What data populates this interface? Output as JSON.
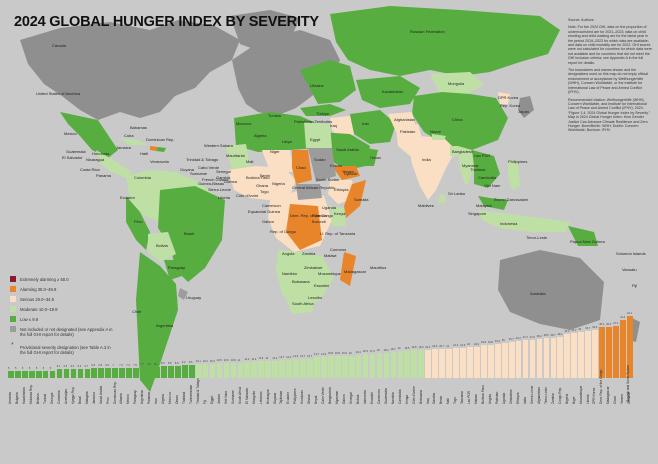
{
  "title": "2024 GLOBAL HUNGER INDEX BY SEVERITY",
  "colors": {
    "background": "#c9c9c9",
    "ocean": "#c9c9c9",
    "extremely_alarming": "#8a1b2e",
    "alarming": "#e8852a",
    "serious": "#fbdfc4",
    "moderate": "#bfe0a4",
    "low": "#57ad3f",
    "not_included": "#9c9c9c",
    "text_dark": "#111111"
  },
  "source_note": [
    "Source: Authors.",
    "Note: For the 2024 GHI, data on the proportion of undernourished are for 2021–2023; data on child stunting and child wasting are for the latest year in the period 2019–2023 for which data are available; and data on child mortality are for 2022. GHI scores were not calculated for countries for which data were not available and for countries that did not meet the GHI inclusion criteria; see Appendix A in the full report for details.",
    "The boundaries and names shown and the designations used on this map do not imply official endorsement or acceptance by Welthungerhilfe (WHH), Concern Worldwide, or the Institute for International Law of Peace and Armed Conflict (IFHV).",
    "Recommended citation: Welthungerhilfe (WHH), Concern Worldwide, and Institute for International Law of Peace and Armed Conflict (IFHV). 2024. “Figure 1.4: 2024 Global Hunger Index by Severity.” Map in 2024 Global Hunger Index: How Gender Justice Can Advance Climate Resilience and Zero Hunger. Bonn/Berlin: WHH; Dublin: Concern Worldwide; Bochum: IFHV."
  ],
  "legend": [
    {
      "key": "extremely_alarming",
      "label": "Extremely alarming ≥ 50.0"
    },
    {
      "key": "alarming",
      "label": "Alarming 35.0–49.9"
    },
    {
      "key": "serious",
      "label": "Serious 20.0–34.9"
    },
    {
      "key": "moderate",
      "label": "Moderate 10.0–19.9"
    },
    {
      "key": "low",
      "label": "Low ≤ 9.9"
    },
    {
      "key": "not_included",
      "label": "Not included or not designated (see Appendix A in the full GHI report for details)"
    },
    {
      "key": "provisional",
      "label": "Provisional severity designation (see Table A.3 in the full GHI report for details)"
    }
  ],
  "map_labels": [
    {
      "text": "Canada",
      "key": "canada"
    },
    {
      "text": "United States of America",
      "key": "usa"
    },
    {
      "text": "Mexico",
      "key": "mexico"
    },
    {
      "text": "Guatemala",
      "key": "guatemala"
    },
    {
      "text": "El Salvador",
      "key": "el_salvador"
    },
    {
      "text": "Nicaragua",
      "key": "nicaragua"
    },
    {
      "text": "Costa Rica",
      "key": "costa_rica"
    },
    {
      "text": "Panama",
      "key": "panama"
    },
    {
      "text": "Honduras",
      "key": "honduras"
    },
    {
      "text": "Cuba",
      "key": "cuba"
    },
    {
      "text": "Jamaica",
      "key": "jamaica"
    },
    {
      "text": "Haiti",
      "key": "haiti"
    },
    {
      "text": "Bahamas",
      "key": "bahamas"
    },
    {
      "text": "Dominican Rep.",
      "key": "dominican"
    },
    {
      "text": "Trinidad & Tobago",
      "key": "trinidad"
    },
    {
      "text": "Venezuela",
      "key": "venezuela"
    },
    {
      "text": "Guyana",
      "key": "guyana"
    },
    {
      "text": "Suriname",
      "key": "suriname"
    },
    {
      "text": "French Guiana",
      "key": "fguiana"
    },
    {
      "text": "Colombia",
      "key": "colombia"
    },
    {
      "text": "Ecuador",
      "key": "ecuador"
    },
    {
      "text": "Peru",
      "key": "peru"
    },
    {
      "text": "Brazil",
      "key": "brazil"
    },
    {
      "text": "Bolivia",
      "key": "bolivia"
    },
    {
      "text": "Paraguay",
      "key": "paraguay"
    },
    {
      "text": "Chile",
      "key": "chile"
    },
    {
      "text": "Argentina",
      "key": "argentina"
    },
    {
      "text": "Uruguay",
      "key": "uruguay"
    },
    {
      "text": "Western Sahara",
      "key": "wsahara"
    },
    {
      "text": "Mauritania",
      "key": "mauritania"
    },
    {
      "text": "Cabo Verde",
      "key": "caboverde"
    },
    {
      "text": "Senegal",
      "key": "senegal"
    },
    {
      "text": "Gambia",
      "key": "gambia"
    },
    {
      "text": "Guinea-Bissau",
      "key": "guineabissau"
    },
    {
      "text": "Guinea",
      "key": "guinea"
    },
    {
      "text": "Sierra Leone",
      "key": "sierraleone"
    },
    {
      "text": "Liberia",
      "key": "liberia"
    },
    {
      "text": "Côte d'Ivoire",
      "key": "cotedivoire"
    },
    {
      "text": "Mali",
      "key": "mali"
    },
    {
      "text": "Burkina Faso",
      "key": "burkina"
    },
    {
      "text": "Ghana",
      "key": "ghana"
    },
    {
      "text": "Togo",
      "key": "togo"
    },
    {
      "text": "Benin",
      "key": "benin"
    },
    {
      "text": "Niger",
      "key": "niger"
    },
    {
      "text": "Nigeria",
      "key": "nigeria"
    },
    {
      "text": "Morocco",
      "key": "morocco"
    },
    {
      "text": "Algeria",
      "key": "algeria"
    },
    {
      "text": "Tunisia",
      "key": "tunisia"
    },
    {
      "text": "Libya",
      "key": "libya"
    },
    {
      "text": "Egypt",
      "key": "egypt"
    },
    {
      "text": "Chad",
      "key": "chad"
    },
    {
      "text": "Sudan",
      "key": "sudan"
    },
    {
      "text": "South Sudan",
      "key": "ssudan"
    },
    {
      "text": "Ethiopia",
      "key": "ethiopia"
    },
    {
      "text": "Eritrea",
      "key": "eritrea"
    },
    {
      "text": "Djibouti",
      "key": "djibouti"
    },
    {
      "text": "Somalia",
      "key": "somalia"
    },
    {
      "text": "Kenya",
      "key": "kenya"
    },
    {
      "text": "Uganda",
      "key": "uganda"
    },
    {
      "text": "Rwanda",
      "key": "rwanda"
    },
    {
      "text": "Burundi",
      "key": "burundi"
    },
    {
      "text": "U. Rep. of Tanzania",
      "key": "tanzania"
    },
    {
      "text": "Cameroon",
      "key": "cameroon"
    },
    {
      "text": "Central African Republic",
      "key": "car"
    },
    {
      "text": "Equatorial Guinea",
      "key": "eqguinea"
    },
    {
      "text": "Gabon",
      "key": "gabon"
    },
    {
      "text": "Rep. of Congo",
      "key": "congo"
    },
    {
      "text": "Dem. Rep. of the Congo",
      "key": "drc"
    },
    {
      "text": "Angola",
      "key": "angola"
    },
    {
      "text": "Zambia",
      "key": "zambia"
    },
    {
      "text": "Malawi",
      "key": "malawi"
    },
    {
      "text": "Mozambique",
      "key": "mozambique"
    },
    {
      "text": "Zimbabwe",
      "key": "zimbabwe"
    },
    {
      "text": "Namibia",
      "key": "namibia"
    },
    {
      "text": "Botswana",
      "key": "botswana"
    },
    {
      "text": "South Africa",
      "key": "southafrica"
    },
    {
      "text": "Eswatini",
      "key": "eswatini"
    },
    {
      "text": "Lesotho",
      "key": "lesotho"
    },
    {
      "text": "Madagascar",
      "key": "madagascar"
    },
    {
      "text": "Comoros",
      "key": "comoros"
    },
    {
      "text": "Mauritius",
      "key": "mauritius"
    },
    {
      "text": "Yemen",
      "key": "yemen"
    },
    {
      "text": "Saudi Arabia",
      "key": "saudi"
    },
    {
      "text": "Oman",
      "key": "oman"
    },
    {
      "text": "Palestinian Territories",
      "key": "palestine"
    },
    {
      "text": "Iraq",
      "key": "iraq"
    },
    {
      "text": "Iran",
      "key": "iran"
    },
    {
      "text": "Afghanistan",
      "key": "afghanistan"
    },
    {
      "text": "Pakistan",
      "key": "pakistan"
    },
    {
      "text": "India",
      "key": "india"
    },
    {
      "text": "Nepal",
      "key": "nepal"
    },
    {
      "text": "Bangladesh",
      "key": "bangladesh"
    },
    {
      "text": "Sri Lanka",
      "key": "srilanka"
    },
    {
      "text": "Maldives",
      "key": "maldives"
    },
    {
      "text": "Myanmar",
      "key": "myanmar"
    },
    {
      "text": "Lao PDR",
      "key": "laos"
    },
    {
      "text": "Thailand",
      "key": "thailand"
    },
    {
      "text": "Cambodia",
      "key": "cambodia"
    },
    {
      "text": "Viet Nam",
      "key": "vietnam"
    },
    {
      "text": "Malaysia",
      "key": "malaysia"
    },
    {
      "text": "Brunei Darussalam",
      "key": "brunei"
    },
    {
      "text": "Singapore",
      "key": "singapore"
    },
    {
      "text": "Indonesia",
      "key": "indonesia"
    },
    {
      "text": "Philippines",
      "key": "philippines"
    },
    {
      "text": "Timor-Leste",
      "key": "timor"
    },
    {
      "text": "Papua New Guinea",
      "key": "png"
    },
    {
      "text": "Solomon Islands",
      "key": "solomon"
    },
    {
      "text": "Vanuatu",
      "key": "vanuatu"
    },
    {
      "text": "Fiji",
      "key": "fiji"
    },
    {
      "text": "Australia",
      "key": "australia"
    },
    {
      "text": "China",
      "key": "china"
    },
    {
      "text": "Mongolia",
      "key": "mongolia"
    },
    {
      "text": "DPR Korea",
      "key": "dprk"
    },
    {
      "text": "Rep. Korea",
      "key": "rok"
    },
    {
      "text": "Japan",
      "key": "japan"
    },
    {
      "text": "Russian Federation",
      "key": "russia"
    },
    {
      "text": "Kazakhstan",
      "key": "kazakhstan"
    },
    {
      "text": "Ukraine",
      "key": "ukraine"
    },
    {
      "text": "Türkiye",
      "key": "turkey"
    }
  ],
  "bar_chart": {
    "bars": [
      {
        "name": "Armenia",
        "value": 5,
        "cat": "low"
      },
      {
        "name": "Bulgaria",
        "value": 5,
        "cat": "low"
      },
      {
        "name": "Kazakhstan",
        "value": 5,
        "cat": "low"
      },
      {
        "name": "Moldova Rep.",
        "value": 5,
        "cat": "low"
      },
      {
        "name": "Belarus",
        "value": 5,
        "cat": "low"
      },
      {
        "name": "Tunisia",
        "value": 5,
        "cat": "low"
      },
      {
        "name": "Georgia",
        "value": 5,
        "cat": "low"
      },
      {
        "name": "Colombia",
        "value": 6.1,
        "cat": "low"
      },
      {
        "name": "Azerbaijan",
        "value": 6.3,
        "cat": "low"
      },
      {
        "name": "Kyrgyz Rep.",
        "value": 6.5,
        "cat": "low"
      },
      {
        "name": "Brazil",
        "value": 6.4,
        "cat": "low"
      },
      {
        "name": "Malaysia",
        "value": 6.7,
        "cat": "low"
      },
      {
        "name": "Jamaica",
        "value": 6.8,
        "cat": "low"
      },
      {
        "name": "Saudi Arabia",
        "value": 6.8,
        "cat": "low"
      },
      {
        "name": "Peru",
        "value": 6.9,
        "cat": "low"
      },
      {
        "name": "Dominican Rep.",
        "value": 7.0,
        "cat": "low"
      },
      {
        "name": "Albania",
        "value": 7.2,
        "cat": "low"
      },
      {
        "name": "Mexico",
        "value": 7.3,
        "cat": "low"
      },
      {
        "name": "Paraguay",
        "value": 7.5,
        "cat": "low"
      },
      {
        "name": "Argentina",
        "value": 7.7,
        "cat": "low"
      },
      {
        "name": "Panama",
        "value": 7.8,
        "cat": "low"
      },
      {
        "name": "Iran",
        "value": 8.1,
        "cat": "low"
      },
      {
        "name": "Algeria",
        "value": 8.3,
        "cat": "low"
      },
      {
        "name": "Morocco",
        "value": 8.5,
        "cat": "low"
      },
      {
        "name": "Oman",
        "value": 8.8,
        "cat": "low"
      },
      {
        "name": "Thailand",
        "value": 9.2,
        "cat": "low"
      },
      {
        "name": "Turkmenistan",
        "value": 9.6,
        "cat": "low"
      },
      {
        "name": "Trinidad & Tobago",
        "value": 10.1,
        "cat": "moderate"
      },
      {
        "name": "Fiji",
        "value": 10.2,
        "cat": "moderate"
      },
      {
        "name": "Egypt",
        "value": 10.3,
        "cat": "moderate"
      },
      {
        "name": "Jordan",
        "value": 10.5,
        "cat": "moderate"
      },
      {
        "name": "Viet Nam",
        "value": 10.6,
        "cat": "moderate"
      },
      {
        "name": "Suriname",
        "value": 10.8,
        "cat": "moderate"
      },
      {
        "name": "South Africa",
        "value": 11.0,
        "cat": "moderate"
      },
      {
        "name": "El Salvador",
        "value": 11.2,
        "cat": "moderate"
      },
      {
        "name": "Mongolia",
        "value": 11.4,
        "cat": "moderate"
      },
      {
        "name": "Lebanon",
        "value": 11.8,
        "cat": "moderate"
      },
      {
        "name": "Nicaragua",
        "value": 12.0,
        "cat": "moderate"
      },
      {
        "name": "Guyana",
        "value": 12.2,
        "cat": "moderate"
      },
      {
        "name": "Tajikistan",
        "value": 12.7,
        "cat": "moderate"
      },
      {
        "name": "Ecuador",
        "value": 13.2,
        "cat": "moderate"
      },
      {
        "name": "Philippines",
        "value": 13.5,
        "cat": "moderate"
      },
      {
        "name": "Honduras",
        "value": 13.7,
        "cat": "moderate"
      },
      {
        "name": "Ghana",
        "value": 13.7,
        "cat": "moderate"
      },
      {
        "name": "Nepal",
        "value": 14.7,
        "cat": "moderate"
      },
      {
        "name": "Cabo Verde",
        "value": 14.9,
        "cat": "moderate"
      },
      {
        "name": "Bangladesh",
        "value": 15.8,
        "cat": "moderate"
      },
      {
        "name": "Myanmar",
        "value": 15.8,
        "cat": "moderate"
      },
      {
        "name": "Gabon",
        "value": 15.9,
        "cat": "moderate"
      },
      {
        "name": "Senegal",
        "value": 16.0,
        "cat": "moderate"
      },
      {
        "name": "Bolivia",
        "value": 16.4,
        "cat": "moderate"
      },
      {
        "name": "Indonesia",
        "value": 16.9,
        "cat": "moderate"
      },
      {
        "name": "Eswatini",
        "value": 17.3,
        "cat": "moderate"
      },
      {
        "name": "Cameroon",
        "value": 18.0,
        "cat": "moderate"
      },
      {
        "name": "Guatemala",
        "value": 18.1,
        "cat": "moderate"
      },
      {
        "name": "Namibia",
        "value": 18.7,
        "cat": "moderate"
      },
      {
        "name": "Cambodia",
        "value": 19.0,
        "cat": "moderate"
      },
      {
        "name": "Kenya",
        "value": 19.5,
        "cat": "moderate"
      },
      {
        "name": "Côte d'Ivoire",
        "value": 19.8,
        "cat": "moderate"
      },
      {
        "name": "Botswana",
        "value": 19.9,
        "cat": "moderate"
      },
      {
        "name": "Iraq",
        "value": 20.3,
        "cat": "serious"
      },
      {
        "name": "Gambia",
        "value": 20.5,
        "cat": "serious"
      },
      {
        "name": "Benin",
        "value": 20.7,
        "cat": "serious"
      },
      {
        "name": "Mali",
        "value": 21.0,
        "cat": "serious"
      },
      {
        "name": "Togo",
        "value": 21.3,
        "cat": "serious"
      },
      {
        "name": "Tanzania",
        "value": 21.6,
        "cat": "serious"
      },
      {
        "name": "Lao PDR",
        "value": 22.0,
        "cat": "serious"
      },
      {
        "name": "Malawi",
        "value": 22.2,
        "cat": "serious"
      },
      {
        "name": "Burkina Faso",
        "value": 23.6,
        "cat": "serious"
      },
      {
        "name": "Angola",
        "value": 23.8,
        "cat": "serious"
      },
      {
        "name": "Pakistan",
        "value": 24.4,
        "cat": "serious"
      },
      {
        "name": "Uganda",
        "value": 25.0,
        "cat": "serious"
      },
      {
        "name": "Zimbabwe",
        "value": 25.7,
        "cat": "serious"
      },
      {
        "name": "Ethiopia",
        "value": 26.2,
        "cat": "serious"
      },
      {
        "name": "India",
        "value": 27.3,
        "cat": "serious"
      },
      {
        "name": "Sierra Leone",
        "value": 27.5,
        "cat": "serious"
      },
      {
        "name": "Afghanistan",
        "value": 28.2,
        "cat": "serious"
      },
      {
        "name": "Timor-Leste",
        "value": 28.5,
        "cat": "serious"
      },
      {
        "name": "Zambia",
        "value": 28.7,
        "cat": "serious"
      },
      {
        "name": "Congo Rep.",
        "value": 29.1,
        "cat": "serious"
      },
      {
        "name": "Nigeria",
        "value": 31.3,
        "cat": "serious"
      },
      {
        "name": "Niger",
        "value": 32.2,
        "cat": "serious"
      },
      {
        "name": "Mozambique",
        "value": 33.0,
        "cat": "serious"
      },
      {
        "name": "Liberia",
        "value": 33.7,
        "cat": "serious"
      },
      {
        "name": "DPR Korea",
        "value": 34.3,
        "cat": "serious"
      },
      {
        "name": "Dem. Rep. of the Congo",
        "value": 36.4,
        "cat": "alarming"
      },
      {
        "name": "Madagascar",
        "value": 36.3,
        "cat": "alarming"
      },
      {
        "name": "Chad",
        "value": 37.4,
        "cat": "alarming"
      },
      {
        "name": "Yemen",
        "value": 41.2,
        "cat": "alarming"
      },
      {
        "name": "Somalia",
        "value": 44.1,
        "cat": "alarming"
      }
    ]
  },
  "bar_note": "Burundi and South Sudan"
}
